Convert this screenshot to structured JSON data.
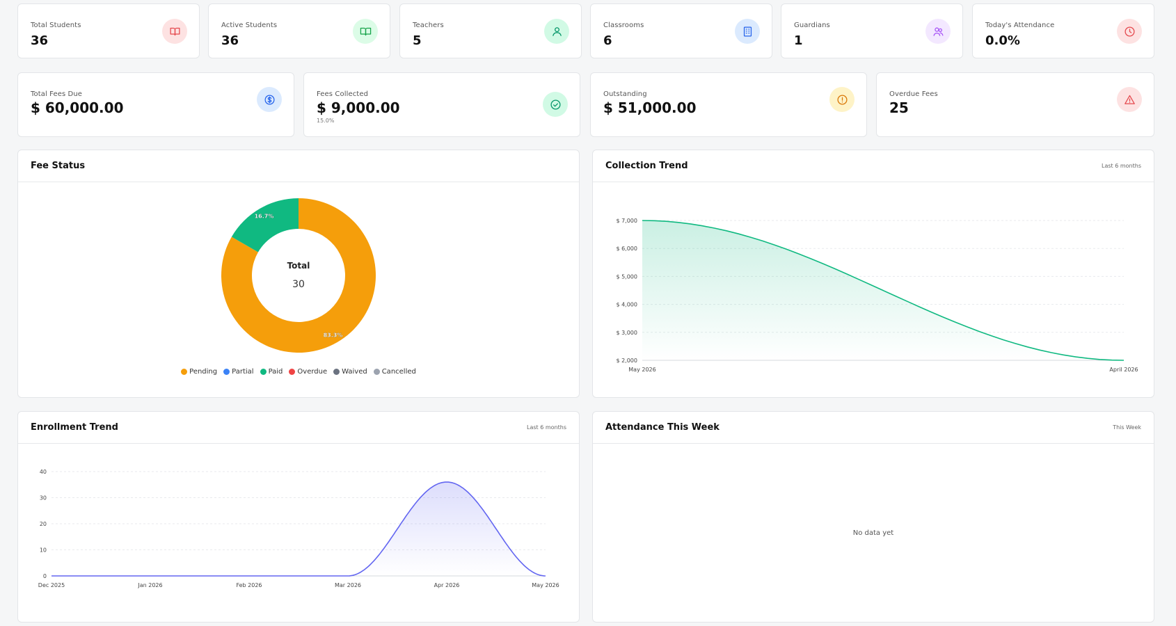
{
  "stats_row1": [
    {
      "label": "Total Students",
      "value": "36",
      "icon": "book-icon",
      "icon_bg": "#fde2e2",
      "icon_color": "#e5484d"
    },
    {
      "label": "Active Students",
      "value": "36",
      "icon": "book-open-icon",
      "icon_bg": "#dcfce7",
      "icon_color": "#16a34a"
    },
    {
      "label": "Teachers",
      "value": "5",
      "icon": "users-icon",
      "icon_bg": "#d1fae5",
      "icon_color": "#059669"
    },
    {
      "label": "Classrooms",
      "value": "6",
      "icon": "building-icon",
      "icon_bg": "#dbeafe",
      "icon_color": "#2563eb"
    },
    {
      "label": "Guardians",
      "value": "1",
      "icon": "guardians-icon",
      "icon_bg": "#f3e8ff",
      "icon_color": "#a855f7"
    },
    {
      "label": "Today's Attendance",
      "value": "0.0%",
      "icon": "clock-icon",
      "icon_bg": "#fde2e2",
      "icon_color": "#e5484d"
    }
  ],
  "stats_row2": [
    {
      "label": "Total Fees Due",
      "value": "$ 60,000.00",
      "sub": "",
      "icon": "dollar-icon",
      "icon_bg": "#dbeafe",
      "icon_color": "#2563eb"
    },
    {
      "label": "Fees Collected",
      "value": "$ 9,000.00",
      "sub": "15.0%",
      "icon": "check-circle-icon",
      "icon_bg": "#d1fae5",
      "icon_color": "#059669"
    },
    {
      "label": "Outstanding",
      "value": "$ 51,000.00",
      "sub": "",
      "icon": "alert-circle-icon",
      "icon_bg": "#fef3c7",
      "icon_color": "#d97706"
    },
    {
      "label": "Overdue Fees",
      "value": "25",
      "sub": "",
      "icon": "alert-triangle-icon",
      "icon_bg": "#fde2e2",
      "icon_color": "#e5484d"
    }
  ],
  "fee_status": {
    "title": "Fee Status",
    "center_label": "Total",
    "center_value": "30",
    "legend": [
      {
        "name": "Pending",
        "color": "#f59e0b"
      },
      {
        "name": "Partial",
        "color": "#3b82f6"
      },
      {
        "name": "Paid",
        "color": "#10b981"
      },
      {
        "name": "Overdue",
        "color": "#ef4444"
      },
      {
        "name": "Waived",
        "color": "#6b7280"
      },
      {
        "name": "Cancelled",
        "color": "#9ca3af"
      }
    ]
  },
  "collection_trend": {
    "title": "Collection Trend",
    "subtitle": "Last 6 months"
  },
  "enrollment_trend": {
    "title": "Enrollment Trend",
    "subtitle": "Last 6 months"
  },
  "attendance_week": {
    "title": "Attendance This Week",
    "subtitle": "This Week",
    "empty_text": "No data yet"
  },
  "chart_data": [
    {
      "type": "pie",
      "title": "Fee Status",
      "categories": [
        "Pending",
        "Paid"
      ],
      "values": [
        25,
        5
      ],
      "labels": [
        "83.3%",
        "16.7%"
      ],
      "colors": [
        "#f59e0b",
        "#10b981"
      ]
    },
    {
      "type": "area",
      "title": "Collection Trend",
      "x": [
        "May 2026",
        "April 2026"
      ],
      "values": [
        7000,
        2000
      ],
      "ylim": [
        2000,
        7000
      ],
      "yticks": [
        "$ 7,000",
        "$ 6,000",
        "$ 5,000",
        "$ 4,000",
        "$ 3,000",
        "$ 2,000"
      ],
      "color": "#10b981",
      "grid": true
    },
    {
      "type": "area",
      "title": "Enrollment Trend",
      "x": [
        "Dec 2025",
        "Jan 2026",
        "Feb 2026",
        "Mar 2026",
        "Apr 2026",
        "May 2026"
      ],
      "values": [
        0,
        0,
        0,
        0,
        36,
        0
      ],
      "ylim": [
        0,
        40
      ],
      "yticks": [
        "40",
        "30",
        "20",
        "10",
        "0"
      ],
      "color": "#6366f1",
      "grid": true
    }
  ]
}
